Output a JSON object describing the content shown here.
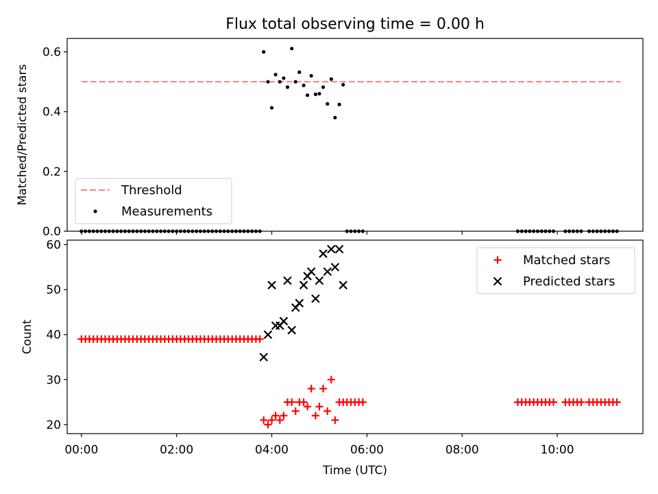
{
  "title": "Flux total observing time = 0.00 h",
  "colors": {
    "threshold": "#ff7f7f",
    "measurements": "#000000",
    "matched": "#ff0000",
    "predicted": "#000000",
    "axes": "#000000"
  },
  "chart_data": [
    {
      "type": "scatter",
      "title": "Flux total observing time = 0.00 h",
      "ylabel": "Matched/Predicted stars",
      "xlabel": "",
      "xlim": [
        -0.3,
        11.8
      ],
      "ylim": [
        0.0,
        0.645
      ],
      "yticks": [
        "0.0",
        "0.2",
        "0.4",
        "0.6"
      ],
      "legend_position": "lower-left",
      "threshold": {
        "name": "Threshold",
        "value": 0.5,
        "x_range": [
          0.0,
          11.33
        ],
        "style": "dashed"
      },
      "measurements_name": "Measurements",
      "measurements": [
        [
          3.83,
          0.6
        ],
        [
          3.92,
          0.5
        ],
        [
          4.0,
          0.413
        ],
        [
          4.08,
          0.524
        ],
        [
          4.17,
          0.5
        ],
        [
          4.25,
          0.512
        ],
        [
          4.33,
          0.482
        ],
        [
          4.42,
          0.611
        ],
        [
          4.5,
          0.5
        ],
        [
          4.58,
          0.532
        ],
        [
          4.67,
          0.488
        ],
        [
          4.75,
          0.455
        ],
        [
          4.83,
          0.52
        ],
        [
          4.92,
          0.458
        ],
        [
          5.0,
          0.46
        ],
        [
          5.08,
          0.482
        ],
        [
          5.17,
          0.426
        ],
        [
          5.25,
          0.509
        ],
        [
          5.33,
          0.38
        ],
        [
          5.42,
          0.424
        ],
        [
          5.5,
          0.49
        ]
      ],
      "zero_segments": [
        [
          0.0,
          3.75
        ],
        [
          5.58,
          5.92
        ],
        [
          9.17,
          10.0
        ],
        [
          10.17,
          10.58
        ],
        [
          10.67,
          11.33
        ]
      ]
    },
    {
      "type": "scatter",
      "xlabel": "Time (UTC)",
      "ylabel": "Count",
      "xlim": [
        -0.3,
        11.8
      ],
      "ylim": [
        18.0,
        61.0
      ],
      "yticks": [
        "20",
        "30",
        "40",
        "50",
        "60"
      ],
      "xticks": [
        {
          "value": 0,
          "label": "00:00"
        },
        {
          "value": 2,
          "label": "02:00"
        },
        {
          "value": 4,
          "label": "04:00"
        },
        {
          "value": 6,
          "label": "06:00"
        },
        {
          "value": 8,
          "label": "08:00"
        },
        {
          "value": 10,
          "label": "10:00"
        }
      ],
      "legend_position": "upper-right",
      "series": [
        {
          "name": "Matched stars",
          "marker": "plus",
          "segments": [
            {
              "x_range": [
                0.0,
                3.75
              ],
              "y": 39
            },
            {
              "x_range": [
                5.58,
                5.92
              ],
              "y": 25
            },
            {
              "x_range": [
                9.17,
                10.0
              ],
              "y": 25
            },
            {
              "x_range": [
                10.17,
                10.58
              ],
              "y": 25
            },
            {
              "x_range": [
                10.67,
                11.33
              ],
              "y": 25
            }
          ],
          "points": [
            [
              3.83,
              21
            ],
            [
              3.92,
              20
            ],
            [
              4.0,
              21
            ],
            [
              4.08,
              22
            ],
            [
              4.17,
              21
            ],
            [
              4.25,
              22
            ],
            [
              4.33,
              25
            ],
            [
              4.42,
              25
            ],
            [
              4.5,
              23
            ],
            [
              4.58,
              25
            ],
            [
              4.67,
              25
            ],
            [
              4.75,
              24
            ],
            [
              4.83,
              28
            ],
            [
              4.92,
              22
            ],
            [
              5.0,
              24
            ],
            [
              5.08,
              28
            ],
            [
              5.17,
              23
            ],
            [
              5.25,
              30
            ],
            [
              5.33,
              21
            ],
            [
              5.42,
              25
            ],
            [
              5.5,
              25
            ]
          ]
        },
        {
          "name": "Predicted stars",
          "marker": "cross",
          "points": [
            [
              3.83,
              35
            ],
            [
              3.92,
              40
            ],
            [
              4.0,
              51
            ],
            [
              4.08,
              42
            ],
            [
              4.17,
              42
            ],
            [
              4.25,
              43
            ],
            [
              4.33,
              52
            ],
            [
              4.42,
              41
            ],
            [
              4.5,
              46
            ],
            [
              4.58,
              47
            ],
            [
              4.67,
              51
            ],
            [
              4.75,
              53
            ],
            [
              4.83,
              54
            ],
            [
              4.92,
              48
            ],
            [
              5.0,
              52
            ],
            [
              5.08,
              58
            ],
            [
              5.17,
              54
            ],
            [
              5.25,
              59
            ],
            [
              5.33,
              55
            ],
            [
              5.42,
              59
            ],
            [
              5.5,
              51
            ]
          ]
        }
      ]
    }
  ]
}
